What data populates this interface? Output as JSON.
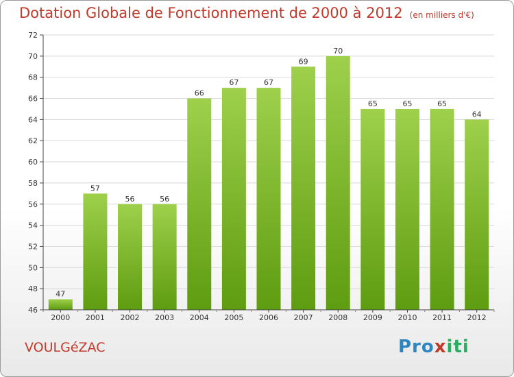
{
  "header": {
    "title": "Dotation Globale de Fonctionnement de 2000 à 2012",
    "unit": "(en milliers d'€)"
  },
  "footer": {
    "commune": "VOULGéZAC",
    "logo_text": "Proxiti"
  },
  "colors": {
    "title": "#c0392b",
    "bar_top": "#9ed04c",
    "bar_bottom": "#5e9c10",
    "grid": "#d8d8d8"
  },
  "chart_data": {
    "type": "bar",
    "title": "Dotation Globale de Fonctionnement de 2000 à 2012",
    "subtitle": "(en milliers d'€)",
    "xlabel": "",
    "ylabel": "",
    "categories": [
      "2000",
      "2001",
      "2002",
      "2003",
      "2004",
      "2005",
      "2006",
      "2007",
      "2008",
      "2009",
      "2010",
      "2011",
      "2012"
    ],
    "values": [
      47,
      57,
      56,
      56,
      66,
      67,
      67,
      69,
      70,
      65,
      65,
      65,
      64
    ],
    "ylim": [
      46,
      72
    ],
    "yticks": [
      46,
      48,
      50,
      52,
      54,
      56,
      58,
      60,
      62,
      64,
      66,
      68,
      70,
      72
    ],
    "grid": true
  }
}
